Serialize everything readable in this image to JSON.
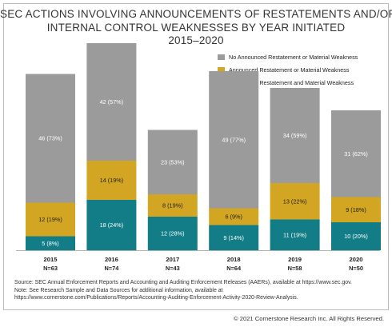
{
  "title": {
    "line1": "SEC ACTIONS INVOLVING ANNOUNCEMENTS OF RESTATEMENTS AND/OR",
    "line2": "INTERNAL CONTROL WEAKNESSES BY YEAR INITIATED",
    "line3": "2015–2020"
  },
  "colors": {
    "no_announced": "#9b9b9b",
    "announced_either": "#d2a622",
    "announced_both": "#127d86"
  },
  "chart_data": {
    "type": "bar",
    "stacked": true,
    "categories": [
      "2015",
      "2016",
      "2017",
      "2018",
      "2019",
      "2020"
    ],
    "n_labels": [
      "N=63",
      "N=74",
      "N=43",
      "N=64",
      "N=58",
      "N=50"
    ],
    "totals": [
      63,
      74,
      43,
      64,
      58,
      50
    ],
    "series": [
      {
        "name": "Announced Restatement and Material Weakness",
        "values": [
          5,
          18,
          12,
          9,
          11,
          10
        ],
        "labels": [
          "5 (8%)",
          "18 (24%)",
          "12 (28%)",
          "9 (14%)",
          "11 (19%)",
          "10 (20%)"
        ]
      },
      {
        "name": "Announced Restatement or Material Weakness",
        "values": [
          12,
          14,
          8,
          6,
          13,
          9
        ],
        "labels": [
          "12 (19%)",
          "14 (19%)",
          "8 (19%)",
          "6 (9%)",
          "13 (22%)",
          "9 (18%)"
        ]
      },
      {
        "name": "No Announced Restatement or Material Weakness",
        "values": [
          46,
          42,
          23,
          49,
          34,
          31
        ],
        "labels": [
          "46 (73%)",
          "42 (57%)",
          "23 (53%)",
          "49 (77%)",
          "34 (59%)",
          "31 (62%)"
        ]
      }
    ],
    "legend": [
      "No Announced Restatement or Material Weakness",
      "Announced Restatement or Material Weakness",
      "Announced Restatement and Material Weakness"
    ],
    "legend_position": "top-right"
  },
  "source": {
    "line1": "Source: SEC Annual Enforcement Reports and Accounting and Auditing Enforcement Releases (AAERs), available at https://www.sec.gov.",
    "line2": "Note: See Research Sample and Data Sources for additional information, available at",
    "line3": "https://www.cornerstone.com/Publications/Reports/Accounting-Auditing-Enforcement-Activity-2020-Review-Analysis."
  },
  "copyright": "© 2021 Cornerstone Research Inc. All Rights Reserved."
}
